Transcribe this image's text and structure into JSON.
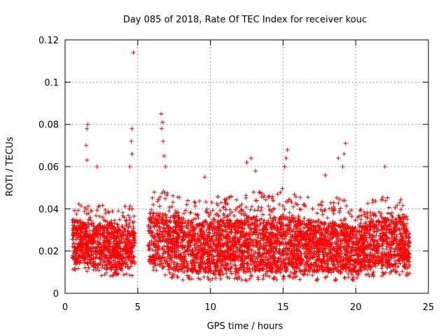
{
  "chart_data": {
    "type": "scatter",
    "title": "Day 085 of 2018, Rate Of TEC Index for receiver kouc",
    "xlabel": "GPS time / hours",
    "ylabel": "ROTI / TECUs",
    "xlim": [
      0,
      25
    ],
    "ylim": [
      0,
      0.12
    ],
    "x_ticks": [
      "0",
      "5",
      "10",
      "15",
      "20",
      "25"
    ],
    "x_tick_values": [
      0,
      5,
      10,
      15,
      20,
      25
    ],
    "y_ticks": [
      "0",
      "0.02",
      "0.04",
      "0.06",
      "0.08",
      "0.1",
      "0.12"
    ],
    "y_tick_values": [
      0,
      0.02,
      0.04,
      0.06,
      0.08,
      0.1,
      0.12
    ],
    "grid": true,
    "marker": "+",
    "color": "#ff0000",
    "data_gap": [
      4.8,
      5.7
    ],
    "series": [
      {
        "description": "dense band of points, typically 0.008–0.045 TECU with scattered spikes",
        "density_points": [
          [
            0.5,
            0.01,
            0.044
          ],
          [
            1.5,
            0.01,
            0.042
          ],
          [
            2.5,
            0.008,
            0.042
          ],
          [
            3.5,
            0.008,
            0.04
          ],
          [
            4.5,
            0.008,
            0.042
          ],
          [
            6.0,
            0.01,
            0.05
          ],
          [
            7.0,
            0.008,
            0.05
          ],
          [
            8.0,
            0.006,
            0.048
          ],
          [
            9.0,
            0.006,
            0.044
          ],
          [
            10.0,
            0.006,
            0.046
          ],
          [
            11.0,
            0.006,
            0.046
          ],
          [
            12.0,
            0.006,
            0.046
          ],
          [
            13.0,
            0.006,
            0.05
          ],
          [
            14.0,
            0.006,
            0.046
          ],
          [
            15.0,
            0.006,
            0.05
          ],
          [
            16.0,
            0.006,
            0.046
          ],
          [
            17.0,
            0.006,
            0.046
          ],
          [
            18.0,
            0.006,
            0.044
          ],
          [
            19.0,
            0.006,
            0.046
          ],
          [
            20.0,
            0.006,
            0.04
          ],
          [
            21.0,
            0.008,
            0.044
          ],
          [
            22.0,
            0.008,
            0.046
          ],
          [
            23.0,
            0.008,
            0.048
          ],
          [
            23.7,
            0.008,
            0.034
          ]
        ],
        "spikes": [
          [
            4.7,
            0.114
          ],
          [
            1.55,
            0.08
          ],
          [
            1.5,
            0.078
          ],
          [
            1.45,
            0.07
          ],
          [
            1.5,
            0.063
          ],
          [
            2.2,
            0.06
          ],
          [
            4.6,
            0.078
          ],
          [
            4.55,
            0.072
          ],
          [
            4.6,
            0.066
          ],
          [
            4.45,
            0.06
          ],
          [
            6.6,
            0.085
          ],
          [
            6.7,
            0.081
          ],
          [
            6.65,
            0.078
          ],
          [
            6.75,
            0.072
          ],
          [
            6.8,
            0.065
          ],
          [
            6.9,
            0.06
          ],
          [
            12.5,
            0.062
          ],
          [
            12.8,
            0.064
          ],
          [
            13.1,
            0.058
          ],
          [
            15.3,
            0.068
          ],
          [
            15.2,
            0.064
          ],
          [
            15.1,
            0.06
          ],
          [
            19.3,
            0.071
          ],
          [
            19.2,
            0.066
          ],
          [
            19.1,
            0.06
          ],
          [
            18.8,
            0.064
          ],
          [
            9.6,
            0.055
          ],
          [
            17.9,
            0.056
          ],
          [
            22.0,
            0.06
          ]
        ]
      }
    ]
  }
}
